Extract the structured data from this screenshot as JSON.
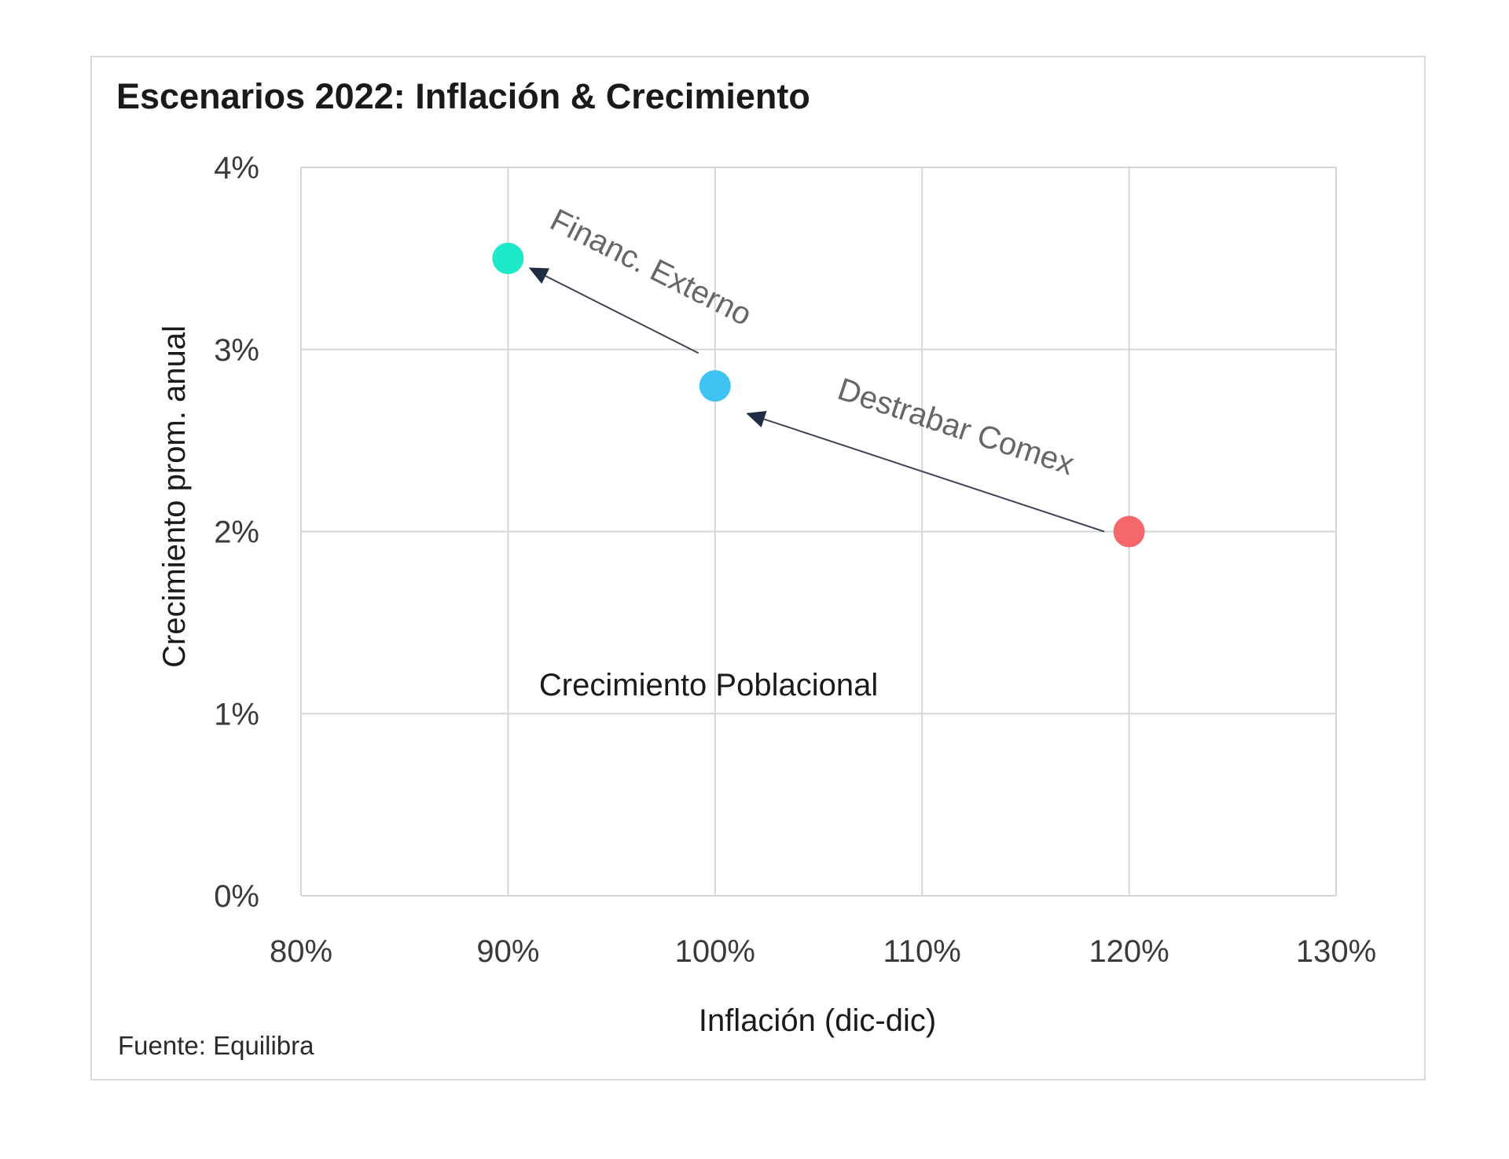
{
  "chart_data": {
    "type": "scatter",
    "title": "Escenarios 2022: Inflación & Crecimiento",
    "xlabel": "Inflación (dic-dic)",
    "ylabel": "Crecimiento prom. anual",
    "xlim": [
      80,
      130
    ],
    "ylim": [
      0,
      4
    ],
    "x_ticks": [
      "80%",
      "90%",
      "100%",
      "110%",
      "120%",
      "130%"
    ],
    "y_ticks": [
      "0%",
      "1%",
      "2%",
      "3%",
      "4%"
    ],
    "grid": true,
    "points": [
      {
        "x": 90,
        "y": 3.5,
        "color": "#1de9c8"
      },
      {
        "x": 100,
        "y": 2.8,
        "color": "#3ec3f2"
      },
      {
        "x": 120,
        "y": 2.0,
        "color": "#f4676b"
      }
    ],
    "arrows": [
      {
        "from": [
          118.8,
          2.0
        ],
        "to": [
          101.5,
          2.65
        ],
        "label": "Destrabar Comex"
      },
      {
        "from": [
          99.2,
          2.98
        ],
        "to": [
          91.0,
          3.45
        ],
        "label": "Financ. Externo"
      }
    ],
    "annotations": [
      {
        "text": "Crecimiento Poblacional",
        "x": 91.5,
        "y": 1.1
      }
    ]
  },
  "source": "Fuente: Equilibra"
}
